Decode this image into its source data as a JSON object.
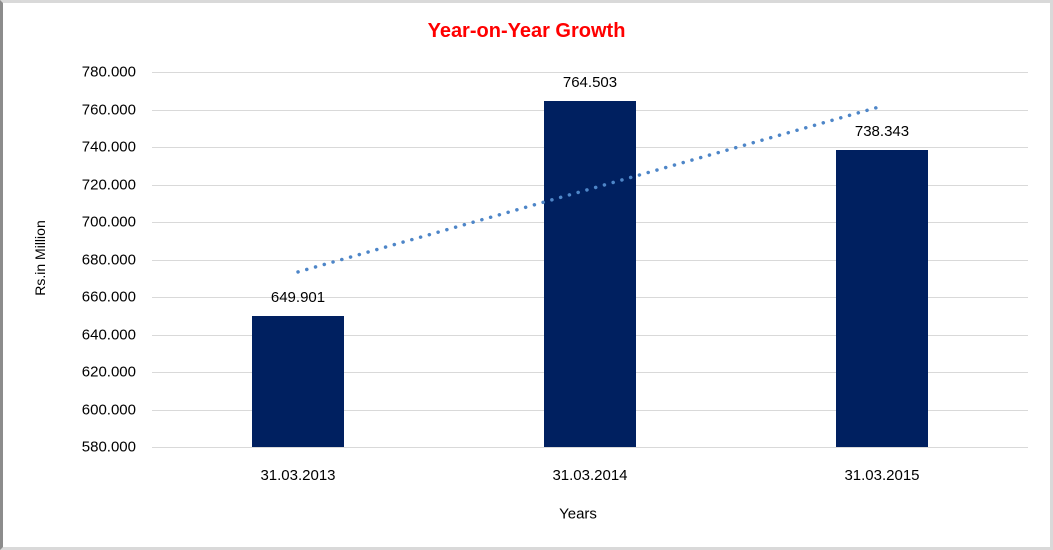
{
  "chart_data": {
    "type": "bar",
    "title": "Year-on-Year Growth",
    "xlabel": "Years",
    "ylabel": "Rs.in Million",
    "categories": [
      "31.03.2013",
      "31.03.2014",
      "31.03.2015"
    ],
    "values": [
      649.901,
      764.503,
      738.343
    ],
    "value_labels": [
      "649.901",
      "764.503",
      "738.343"
    ],
    "ylim": [
      580,
      780
    ],
    "ytick_step": 20,
    "ytick_labels": [
      "580.000",
      "600.000",
      "620.000",
      "640.000",
      "660.000",
      "680.000",
      "700.000",
      "720.000",
      "740.000",
      "760.000",
      "780.000"
    ],
    "grid": true,
    "legend": "none",
    "trendline": {
      "style": "dotted",
      "start_value": 673.361,
      "end_value": 761.803
    },
    "colors": {
      "bar": "#002060",
      "title": "#ff0000",
      "grid": "#d9d9d9",
      "trend": "#4e86c8",
      "text": "#000000"
    }
  }
}
